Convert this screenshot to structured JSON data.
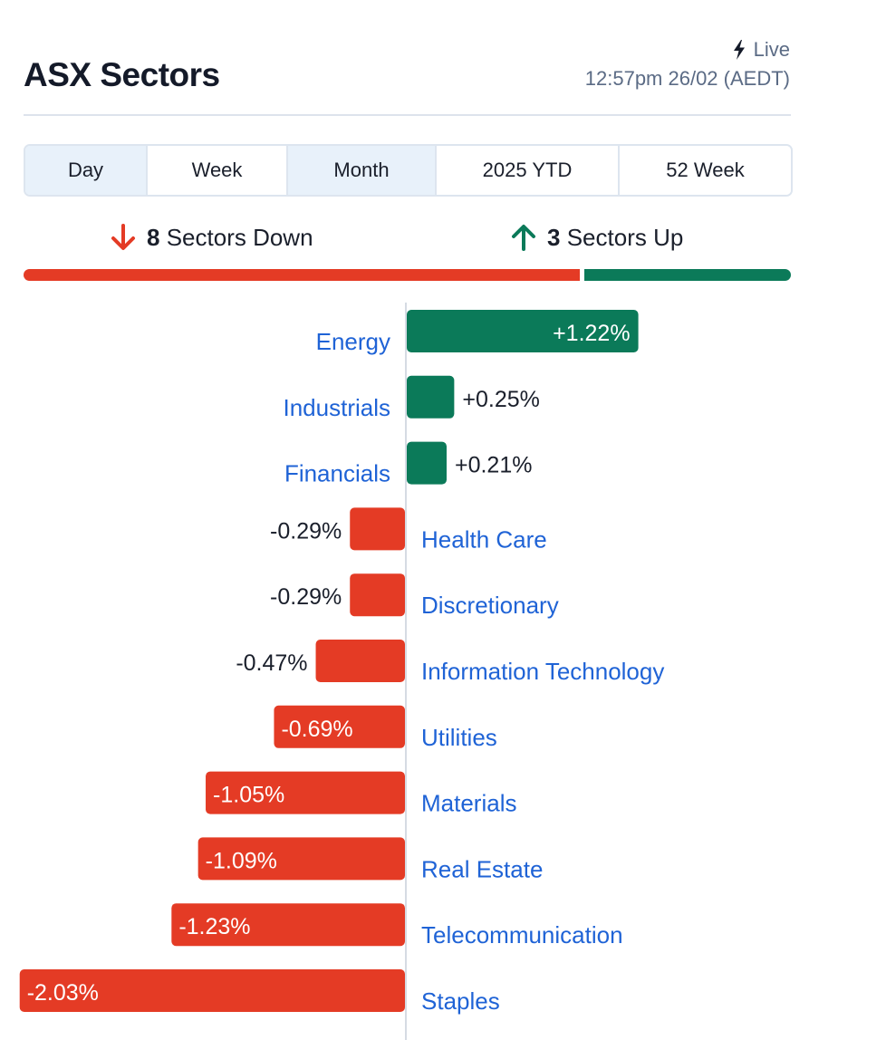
{
  "header": {
    "title": "ASX Sectors",
    "live_label": "Live",
    "live_icon": "lightning-bolt-icon",
    "timestamp": "12:57pm 26/02 (AEDT)"
  },
  "tabs": [
    {
      "label": "Day",
      "shaded": true
    },
    {
      "label": "Week",
      "shaded": false
    },
    {
      "label": "Month",
      "shaded": true
    },
    {
      "label": "2025 YTD",
      "shaded": false
    },
    {
      "label": "52 Week",
      "shaded": false
    }
  ],
  "summary": {
    "down_count": "8",
    "down_label": "Sectors Down",
    "down_icon": "arrow-down-icon",
    "up_count": "3",
    "up_label": "Sectors Up",
    "up_icon": "arrow-up-icon",
    "down_fraction": 0.727,
    "up_fraction": 0.273
  },
  "colors": {
    "up": "#0b7a59",
    "down": "#e43b25",
    "link": "#1f63d6"
  },
  "chart_data": {
    "type": "bar",
    "orientation": "horizontal",
    "categories": [
      "Energy",
      "Industrials",
      "Financials",
      "Health Care",
      "Discretionary",
      "Information Technology",
      "Utilities",
      "Materials",
      "Real Estate",
      "Telecommunication",
      "Staples"
    ],
    "values": [
      1.22,
      0.25,
      0.21,
      -0.29,
      -0.29,
      -0.47,
      -0.69,
      -1.05,
      -1.09,
      -1.23,
      -2.03
    ],
    "value_labels": [
      "+1.22%",
      "+0.25%",
      "+0.21%",
      "-0.29%",
      "-0.29%",
      "-0.47%",
      "-0.69%",
      "-1.05%",
      "-1.09%",
      "-1.23%",
      "-2.03%"
    ],
    "unit": "%"
  }
}
